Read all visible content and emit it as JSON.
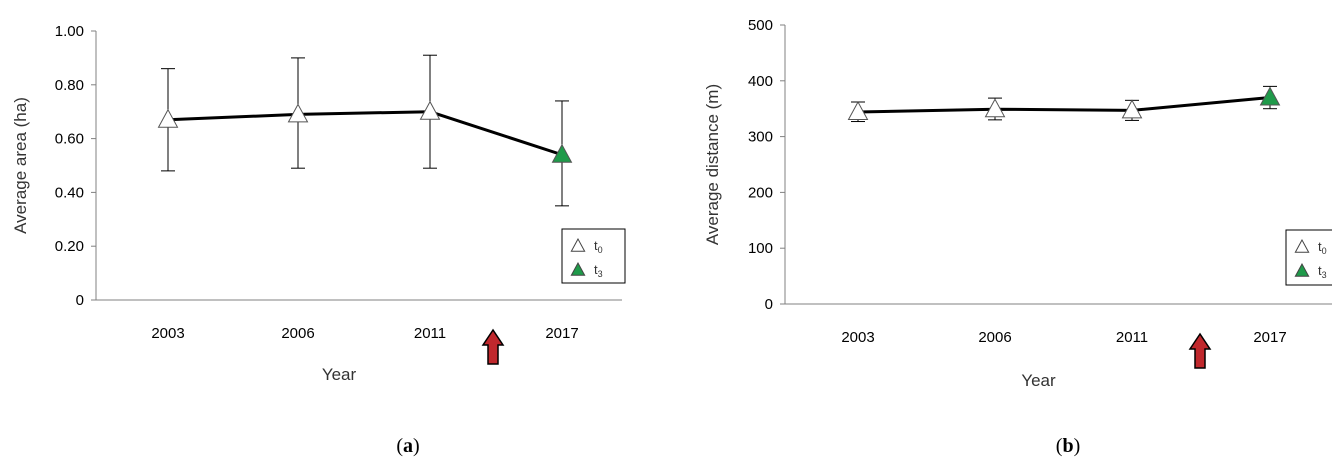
{
  "chart_data": [
    {
      "type": "line",
      "panel_label": "a",
      "xlabel": "Year",
      "ylabel": "Average area (ha)",
      "categories": [
        "2003",
        "2006",
        "2011",
        "2017"
      ],
      "values": [
        0.67,
        0.69,
        0.7,
        0.54
      ],
      "error_low": [
        0.48,
        0.49,
        0.49,
        0.35
      ],
      "error_high": [
        0.86,
        0.9,
        0.91,
        0.74
      ],
      "point_period": [
        "t0",
        "t0",
        "t0",
        "t3"
      ],
      "ylim": [
        0,
        1.0
      ],
      "yticks": [
        0,
        0.2,
        0.4,
        0.6,
        0.8,
        1.0
      ],
      "ytick_labels": [
        "0",
        "0.20",
        "0.40",
        "0.60",
        "0.80",
        "1.00"
      ],
      "grid": false,
      "legend_position": "bottom-right",
      "legend": [
        {
          "label": "t",
          "sub": "0",
          "marker": "white-triangle"
        },
        {
          "label": "t",
          "sub": "3",
          "marker": "green-triangle"
        }
      ],
      "annotation": "red upward arrow between 2011 and 2017"
    },
    {
      "type": "line",
      "panel_label": "b",
      "xlabel": "Year",
      "ylabel": "Average distance (m)",
      "categories": [
        "2003",
        "2006",
        "2011",
        "2017"
      ],
      "values": [
        344,
        349,
        347,
        370
      ],
      "error_low": [
        327,
        330,
        329,
        350
      ],
      "error_high": [
        362,
        369,
        365,
        390
      ],
      "point_period": [
        "t0",
        "t0",
        "t0",
        "t3"
      ],
      "ylim": [
        0,
        500
      ],
      "yticks": [
        0,
        100,
        200,
        300,
        400,
        500
      ],
      "ytick_labels": [
        "0",
        "100",
        "200",
        "300",
        "400",
        "500"
      ],
      "grid": false,
      "legend_position": "bottom-right",
      "legend": [
        {
          "label": "t",
          "sub": "0",
          "marker": "white-triangle"
        },
        {
          "label": "t",
          "sub": "3",
          "marker": "green-triangle"
        }
      ],
      "annotation": "red upward arrow between 2011 and 2017"
    }
  ],
  "colors": {
    "line": "#000000",
    "axis": "#808080",
    "marker_t0": "#ffffff",
    "marker_t3": "#1f9a4a",
    "arrow": "#c0282d"
  }
}
